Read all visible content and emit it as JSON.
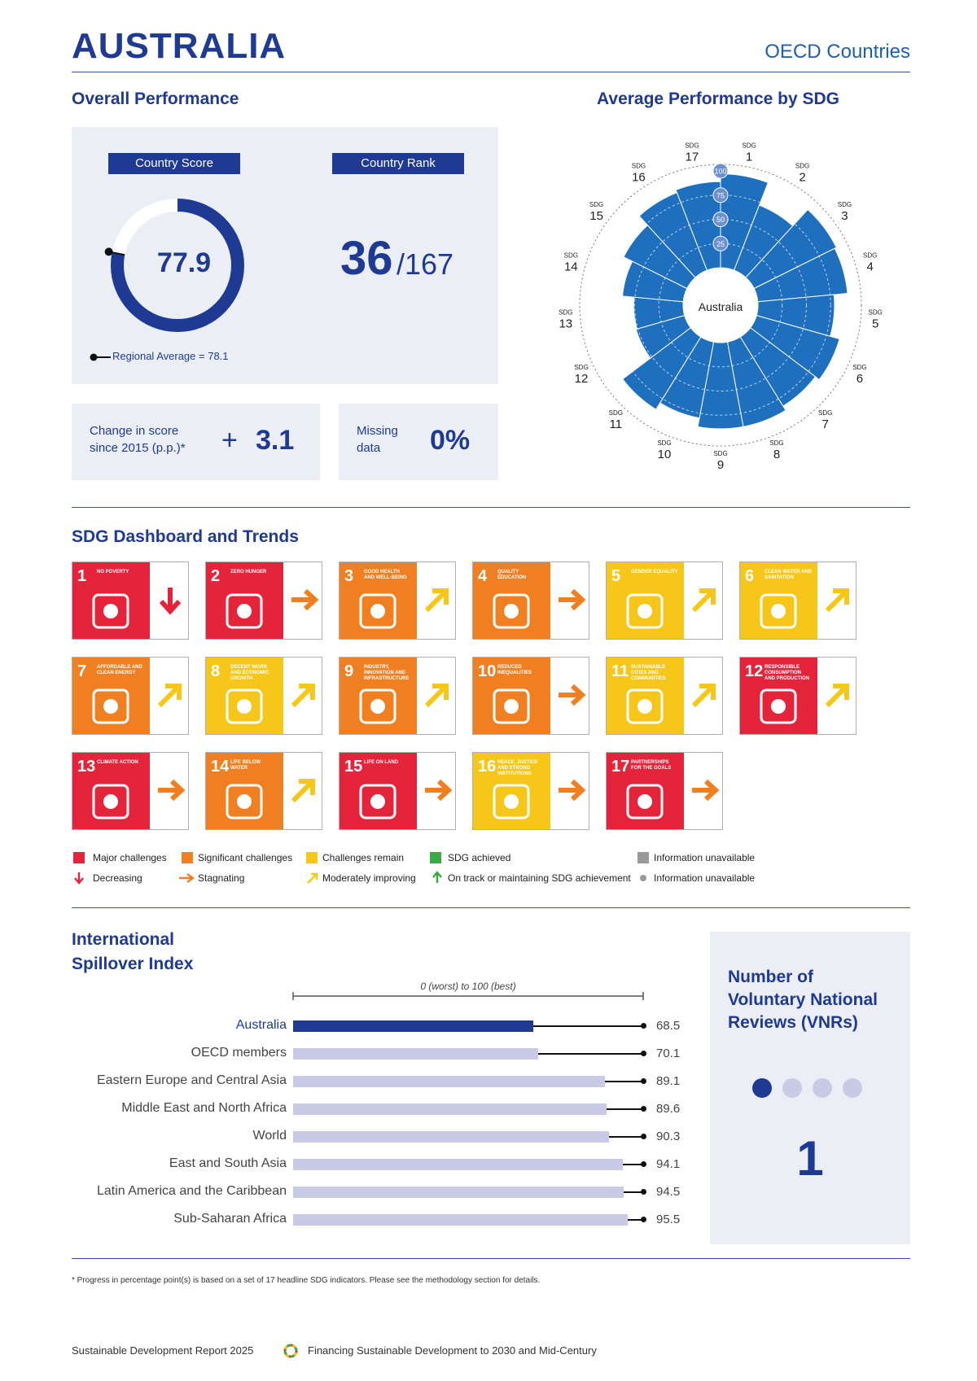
{
  "header": {
    "country": "AUSTRALIA",
    "group": "OECD Countries"
  },
  "overall": {
    "heading": "Overall Performance",
    "score_label": "Country Score",
    "rank_label": "Country Rank",
    "score": "77.9",
    "score_value": 77.9,
    "regional_average_text": "Regional Average = 78.1",
    "regional_average_value": 78.1,
    "rank": "36",
    "rank_total": "/167",
    "change_label_1": "Change in score",
    "change_label_2": "since 2015 (p.p.)*",
    "change_sign": "+",
    "change_value": "3.1",
    "missing_label_1": "Missing",
    "missing_label_2": "data",
    "missing_value": "0%"
  },
  "radar": {
    "heading": "Average Performance by SDG",
    "center_label": "Australia",
    "sdg_prefix": "SDG",
    "ring_labels": [
      "25",
      "50",
      "75",
      "100"
    ],
    "color": "#1f6fbf"
  },
  "chart_data": [
    {
      "type": "bar",
      "title": "Average Performance by SDG",
      "polar": true,
      "categories": [
        "1",
        "2",
        "3",
        "4",
        "5",
        "6",
        "7",
        "8",
        "9",
        "10",
        "11",
        "12",
        "13",
        "14",
        "15",
        "16",
        "17"
      ],
      "values": [
        97,
        72,
        95,
        93,
        79,
        89,
        84,
        89,
        89,
        80,
        88,
        52,
        51,
        63,
        73,
        86,
        89
      ],
      "ylim": [
        0,
        100
      ]
    },
    {
      "type": "bar",
      "title": "International Spillover Index",
      "scale_label": "0 (worst) to 100 (best)",
      "categories": [
        "Australia",
        "OECD members",
        "Eastern Europe and Central Asia",
        "Middle East and North Africa",
        "World",
        "East and South Asia",
        "Latin America and the Caribbean",
        "Sub-Saharan Africa"
      ],
      "values": [
        68.5,
        70.1,
        89.1,
        89.6,
        90.3,
        94.1,
        94.5,
        95.5
      ],
      "ylim": [
        0,
        100
      ]
    }
  ],
  "dashboard": {
    "heading": "SDG Dashboard and Trends",
    "tiles": [
      {
        "n": "1",
        "t": "No poverty",
        "bg": "#e5243b",
        "status": "red",
        "trend": "down"
      },
      {
        "n": "2",
        "t": "Zero hunger",
        "bg": "#e5243b",
        "status": "red",
        "trend": "right"
      },
      {
        "n": "3",
        "t": "Good health and well-being",
        "bg": "#f07f22",
        "status": "orange",
        "trend": "up-right"
      },
      {
        "n": "4",
        "t": "Quality education",
        "bg": "#f07f22",
        "status": "orange",
        "trend": "right"
      },
      {
        "n": "5",
        "t": "Gender equality",
        "bg": "#f6c619",
        "status": "yellow",
        "trend": "up-right"
      },
      {
        "n": "6",
        "t": "Clean water and sanitation",
        "bg": "#f6c619",
        "status": "yellow",
        "trend": "up-right"
      },
      {
        "n": "7",
        "t": "Affordable and clean energy",
        "bg": "#f07f22",
        "status": "orange",
        "trend": "up-right"
      },
      {
        "n": "8",
        "t": "Decent work and economic growth",
        "bg": "#f6c619",
        "status": "yellow",
        "trend": "up-right"
      },
      {
        "n": "9",
        "t": "Industry, innovation and infrastructure",
        "bg": "#f07f22",
        "status": "orange",
        "trend": "up-right"
      },
      {
        "n": "10",
        "t": "Reduced inequalities",
        "bg": "#f07f22",
        "status": "orange",
        "trend": "right"
      },
      {
        "n": "11",
        "t": "Sustainable cities and communities",
        "bg": "#f6c619",
        "status": "yellow",
        "trend": "up-right"
      },
      {
        "n": "12",
        "t": "Responsible consumption and production",
        "bg": "#e5243b",
        "status": "red",
        "trend": "up-right"
      },
      {
        "n": "13",
        "t": "Climate action",
        "bg": "#e5243b",
        "status": "red",
        "trend": "right"
      },
      {
        "n": "14",
        "t": "Life below water",
        "bg": "#f07f22",
        "status": "orange",
        "trend": "up-right"
      },
      {
        "n": "15",
        "t": "Life on land",
        "bg": "#e5243b",
        "status": "red",
        "trend": "right"
      },
      {
        "n": "16",
        "t": "Peace, justice and strong institutions",
        "bg": "#f6c619",
        "status": "yellow",
        "trend": "right"
      },
      {
        "n": "17",
        "t": "Partnerships for the goals",
        "bg": "#e5243b",
        "status": "red",
        "trend": "right"
      }
    ]
  },
  "legend": {
    "major": "Major challenges",
    "significant": "Significant challenges",
    "remain": "Challenges remain",
    "achieved": "SDG achieved",
    "info_unavailable_1": "Information unavailable",
    "decreasing": "Decreasing",
    "stagnating": "Stagnating",
    "moderately": "Moderately improving",
    "on_track": "On track or maintaining SDG achievement",
    "info_unavailable_2": "Information unavailable",
    "colors": {
      "red": "#e5243b",
      "orange": "#f07f22",
      "yellow": "#f6c619",
      "green": "#3aa845",
      "grey": "#999999"
    }
  },
  "spillover": {
    "heading_1": "International",
    "heading_2": "Spillover Index",
    "scale_label": "0 (worst) to 100 (best)",
    "rows": [
      {
        "label": "Australia",
        "value": "68.5",
        "v": 68.5
      },
      {
        "label": "OECD members",
        "value": "70.1",
        "v": 70.1
      },
      {
        "label": "Eastern Europe and Central Asia",
        "value": "89.1",
        "v": 89.1
      },
      {
        "label": "Middle East and North Africa",
        "value": "89.6",
        "v": 89.6
      },
      {
        "label": "World",
        "value": "90.3",
        "v": 90.3
      },
      {
        "label": "East and South Asia",
        "value": "94.1",
        "v": 94.1
      },
      {
        "label": "Latin America and the Caribbean",
        "value": "94.5",
        "v": 94.5
      },
      {
        "label": "Sub-Saharan Africa",
        "value": "95.5",
        "v": 95.5
      }
    ]
  },
  "vnr": {
    "heading_1": "Number of",
    "heading_2": "Voluntary National",
    "heading_3": "Reviews (VNRs)",
    "count": "1",
    "count_value": 1,
    "max_dots": 4
  },
  "footnote": "* Progress in percentage point(s) is based on a set of 17 headline SDG indicators. Please see the methodology section for details.",
  "footer": {
    "left": "Sustainable Development Report 2025",
    "right": "Financing Sustainable Development to 2030 and Mid-Century"
  }
}
